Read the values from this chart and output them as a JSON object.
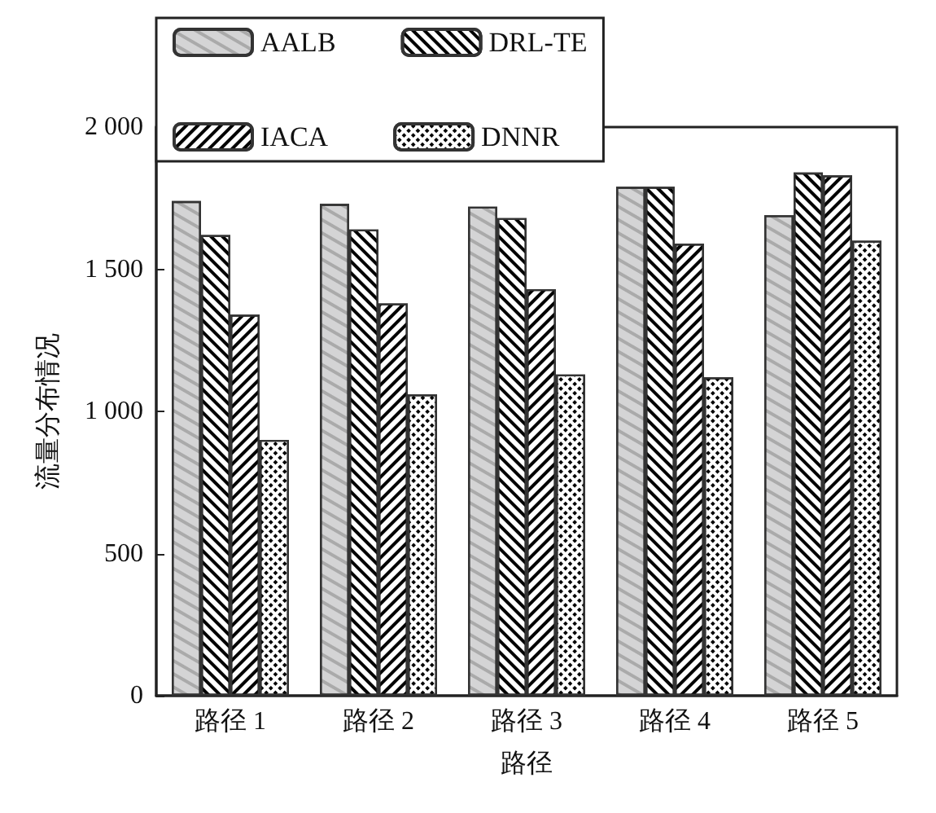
{
  "chart_data": {
    "type": "bar",
    "xlabel": "路径",
    "ylabel": "流量分布情况",
    "categories": [
      "路径 1",
      "路径 2",
      "路径 3",
      "路径 4",
      "路径 5"
    ],
    "series": [
      {
        "name": "AALB",
        "color": "#d4d4d5",
        "values": [
          1740,
          1730,
          1720,
          1790,
          1690
        ]
      },
      {
        "name": "DRL-TE",
        "color": "#ffffff",
        "values": [
          1620,
          1640,
          1680,
          1790,
          1840
        ]
      },
      {
        "name": "IACA",
        "color": "#ffffff",
        "values": [
          1340,
          1380,
          1430,
          1590,
          1830
        ]
      },
      {
        "name": "DNNR",
        "color": "#ffffff",
        "values": [
          900,
          1060,
          1130,
          1120,
          1600
        ]
      }
    ],
    "ylim": [
      0,
      2000
    ],
    "yticks": [
      0,
      500,
      {
        "value": 1000,
        "label": "1 000"
      },
      {
        "value": 1500,
        "label": "1 500"
      },
      {
        "value": 2000,
        "label": "2 000"
      }
    ],
    "grid": false,
    "legend": "top left"
  }
}
